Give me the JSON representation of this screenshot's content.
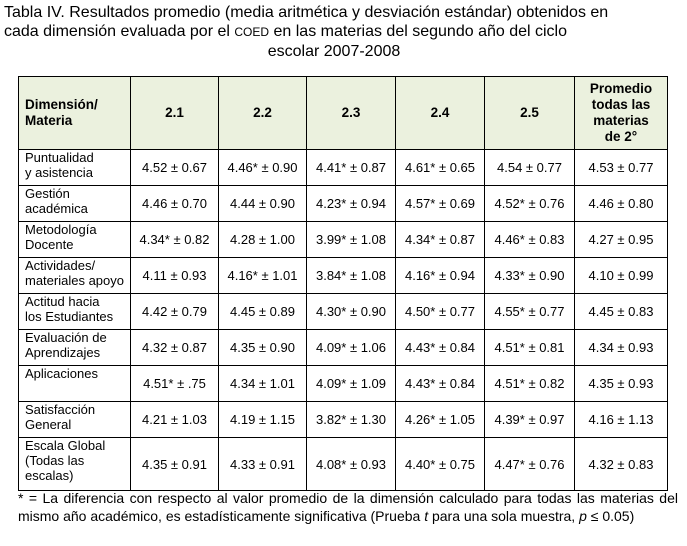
{
  "title": {
    "line1": "Tabla IV. Resultados promedio (media aritmética y desviación estándar) obtenidos en",
    "line2": [
      "cada dimensión evaluada por el ",
      "COED",
      " en las materias del segundo año del ciclo"
    ],
    "line3": "escolar 2007-2008"
  },
  "table": {
    "header": [
      "Dimensión/\nMateria",
      "2.1",
      "2.2",
      "2.3",
      "2.4",
      "2.5",
      "Promedio\ntodas las\nmaterias\nde 2°"
    ],
    "rows": [
      [
        "Puntualidad\ny asistencia",
        "4.52 ± 0.67",
        "4.46* ± 0.90",
        "4.41* ± 0.87",
        "4.61* ± 0.65",
        "4.54 ± 0.77",
        "4.53 ± 0.77"
      ],
      [
        "Gestión\nacadémica",
        "4.46 ± 0.70",
        "4.44 ± 0.90",
        "4.23* ± 0.94",
        "4.57* ± 0.69",
        "4.52* ± 0.76",
        "4.46 ± 0.80"
      ],
      [
        "Metodología\nDocente",
        "4.34* ± 0.82",
        "4.28 ± 1.00",
        "3.99* ± 1.08",
        "4.34* ±  0.87",
        "4.46* ± 0.83",
        "4.27 ± 0.95"
      ],
      [
        "Actividades/\nmateriales apoyo",
        "4.11 ± 0.93",
        "4.16* ± 1.01",
        "3.84* ± 1.08",
        "4.16* ± 0.94",
        "4.33* ± 0.90",
        "4.10 ± 0.99"
      ],
      [
        "Actitud hacia\nlos Estudiantes",
        "4.42 ± 0.79",
        "4.45 ± 0.89",
        "4.30* ± 0.90",
        "4.50* ± 0.77",
        "4.55* ± 0.77",
        "4.45 ± 0.83"
      ],
      [
        "Evaluación de\nAprendizajes",
        "4.32 ± 0.87",
        "4.35 ± 0.90",
        "4.09* ± 1.06",
        "4.43* ± 0.84",
        "4.51* ± 0.81",
        "4.34 ± 0.93"
      ],
      [
        "Aplicaciones",
        "4.51* ± .75",
        "4.34 ± 1.01",
        "4.09* ± 1.09",
        "4.43* ± 0.84",
        "4.51* ± 0.82",
        "4.35 ± 0.93"
      ],
      [
        "Satisfacción\nGeneral",
        "4.21 ± 1.03",
        "4.19 ± 1.15",
        "3.82* ± 1.30",
        "4.26* ± 1.05",
        "4.39* ± 0.97",
        "4.16 ±  1.13"
      ],
      [
        "Escala Global\n(Todas las\nescalas)",
        "4.35 ± 0.91",
        "4.33 ± 0.91",
        "4.08* ± 0.93",
        "4.40* ± 0.75",
        "4.47* ± 0.76",
        "4.32 ± 0.83"
      ]
    ]
  },
  "footnote": [
    "* = La diferencia con respecto al valor promedio de la dimensión calculado para todas las materias del mismo año académico, es estadísticamente significativa (Prueba ",
    "t",
    " para una sola muestra, ",
    "p",
    " ≤ 0.05)"
  ]
}
